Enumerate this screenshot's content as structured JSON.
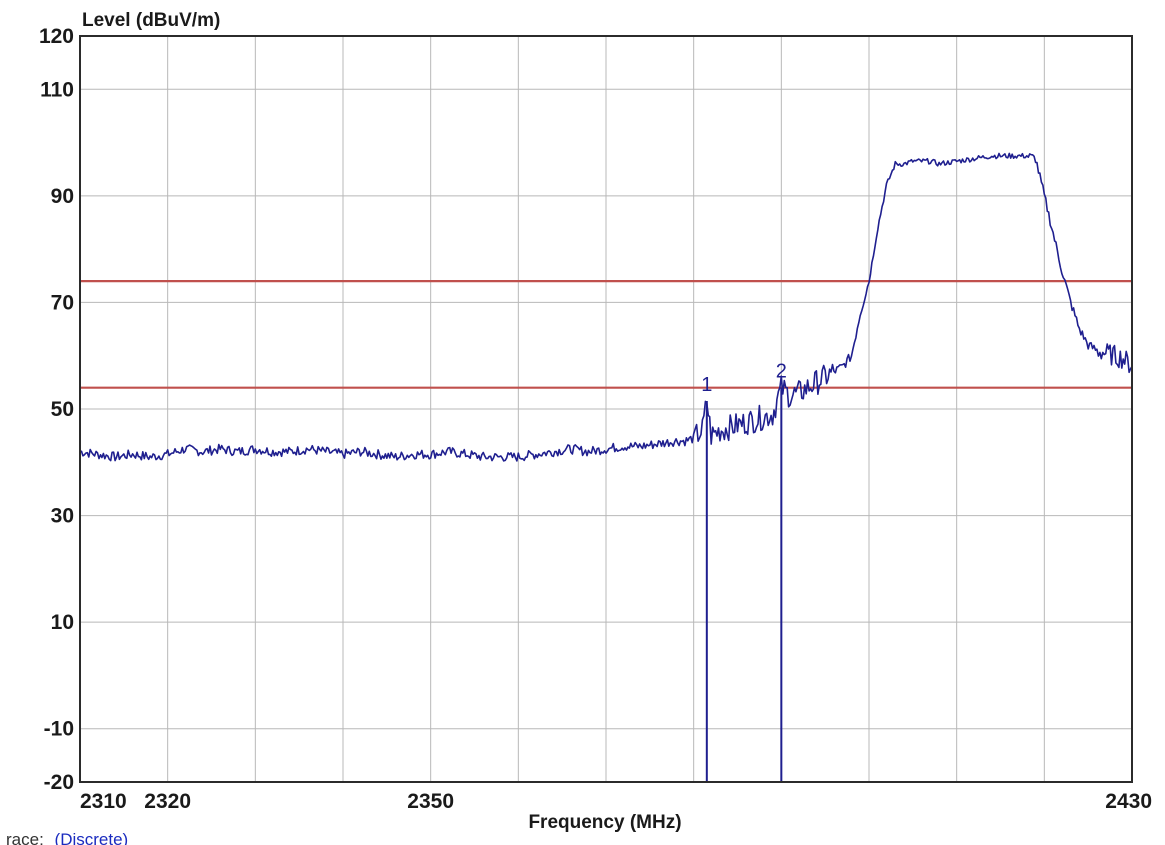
{
  "chart_data": {
    "type": "line",
    "ylabel": "Level (dBuV/m)",
    "xlabel": "Frequency (MHz)",
    "xlim": [
      2310,
      2430
    ],
    "ylim": [
      -20,
      120
    ],
    "x_ticks": [
      2310,
      2320,
      2330,
      2340,
      2350,
      2360,
      2370,
      2380,
      2390,
      2400,
      2410,
      2420,
      2430
    ],
    "x_tick_labels": [
      "2310",
      "2320",
      "",
      "",
      "2350",
      "",
      "",
      "",
      "",
      "",
      "",
      "",
      "2430"
    ],
    "y_ticks": [
      -20,
      -10,
      10,
      30,
      50,
      70,
      90,
      110,
      120
    ],
    "y_tick_labels": [
      "-20",
      "-10",
      "10",
      "30",
      "50",
      "70",
      "90",
      "110",
      "120"
    ],
    "grid": true,
    "limit_lines": [
      {
        "y": 74,
        "color": "#c0504d"
      },
      {
        "y": 54,
        "color": "#c0504d"
      }
    ],
    "markers": [
      {
        "label": "1",
        "x": 2381.5,
        "y": 51.5
      },
      {
        "label": "2",
        "x": 2390,
        "y": 54
      }
    ],
    "series": [
      {
        "color": "#1f1f8f",
        "x": [
          2310,
          2312,
          2314,
          2316,
          2318,
          2320,
          2322,
          2324,
          2326,
          2328,
          2330,
          2332,
          2334,
          2336,
          2338,
          2340,
          2342,
          2344,
          2346,
          2348,
          2350,
          2352,
          2354,
          2356,
          2358,
          2360,
          2362,
          2364,
          2366,
          2368,
          2370,
          2372,
          2374,
          2376,
          2378,
          2379,
          2380,
          2381,
          2381.5,
          2382,
          2383,
          2384,
          2385,
          2386,
          2387,
          2388,
          2389,
          2390,
          2391,
          2392,
          2393,
          2394,
          2395,
          2396,
          2397,
          2398,
          2399,
          2400,
          2401,
          2402,
          2403,
          2404,
          2405,
          2406,
          2407,
          2408,
          2410,
          2412,
          2414,
          2416,
          2418,
          2419,
          2420,
          2421,
          2422,
          2423,
          2424,
          2425,
          2426,
          2427,
          2428,
          2429,
          2430
        ],
        "y": [
          42,
          41.5,
          41,
          41.5,
          41,
          41.5,
          42.5,
          42,
          42.5,
          42,
          42.5,
          42,
          42,
          42.5,
          42,
          41.5,
          42,
          41.5,
          41,
          41.5,
          41.5,
          42,
          41.5,
          41,
          41,
          41,
          41.5,
          42,
          42.5,
          42,
          42.5,
          43,
          43,
          43.5,
          44,
          44,
          44.5,
          46,
          51.5,
          45,
          46,
          46.5,
          47,
          47.5,
          48,
          48.5,
          49,
          54,
          52.5,
          53,
          54,
          55,
          56,
          57,
          58,
          60,
          68,
          74,
          84,
          92,
          96,
          96,
          96.5,
          96.5,
          96.5,
          96,
          96.5,
          97,
          97.5,
          97.5,
          97.5,
          97,
          90,
          83,
          76,
          70,
          65,
          62,
          61,
          60.5,
          60,
          59.5,
          58
        ]
      }
    ]
  },
  "trace_label": {
    "prefix": "race:",
    "value": "(Discrete)"
  }
}
